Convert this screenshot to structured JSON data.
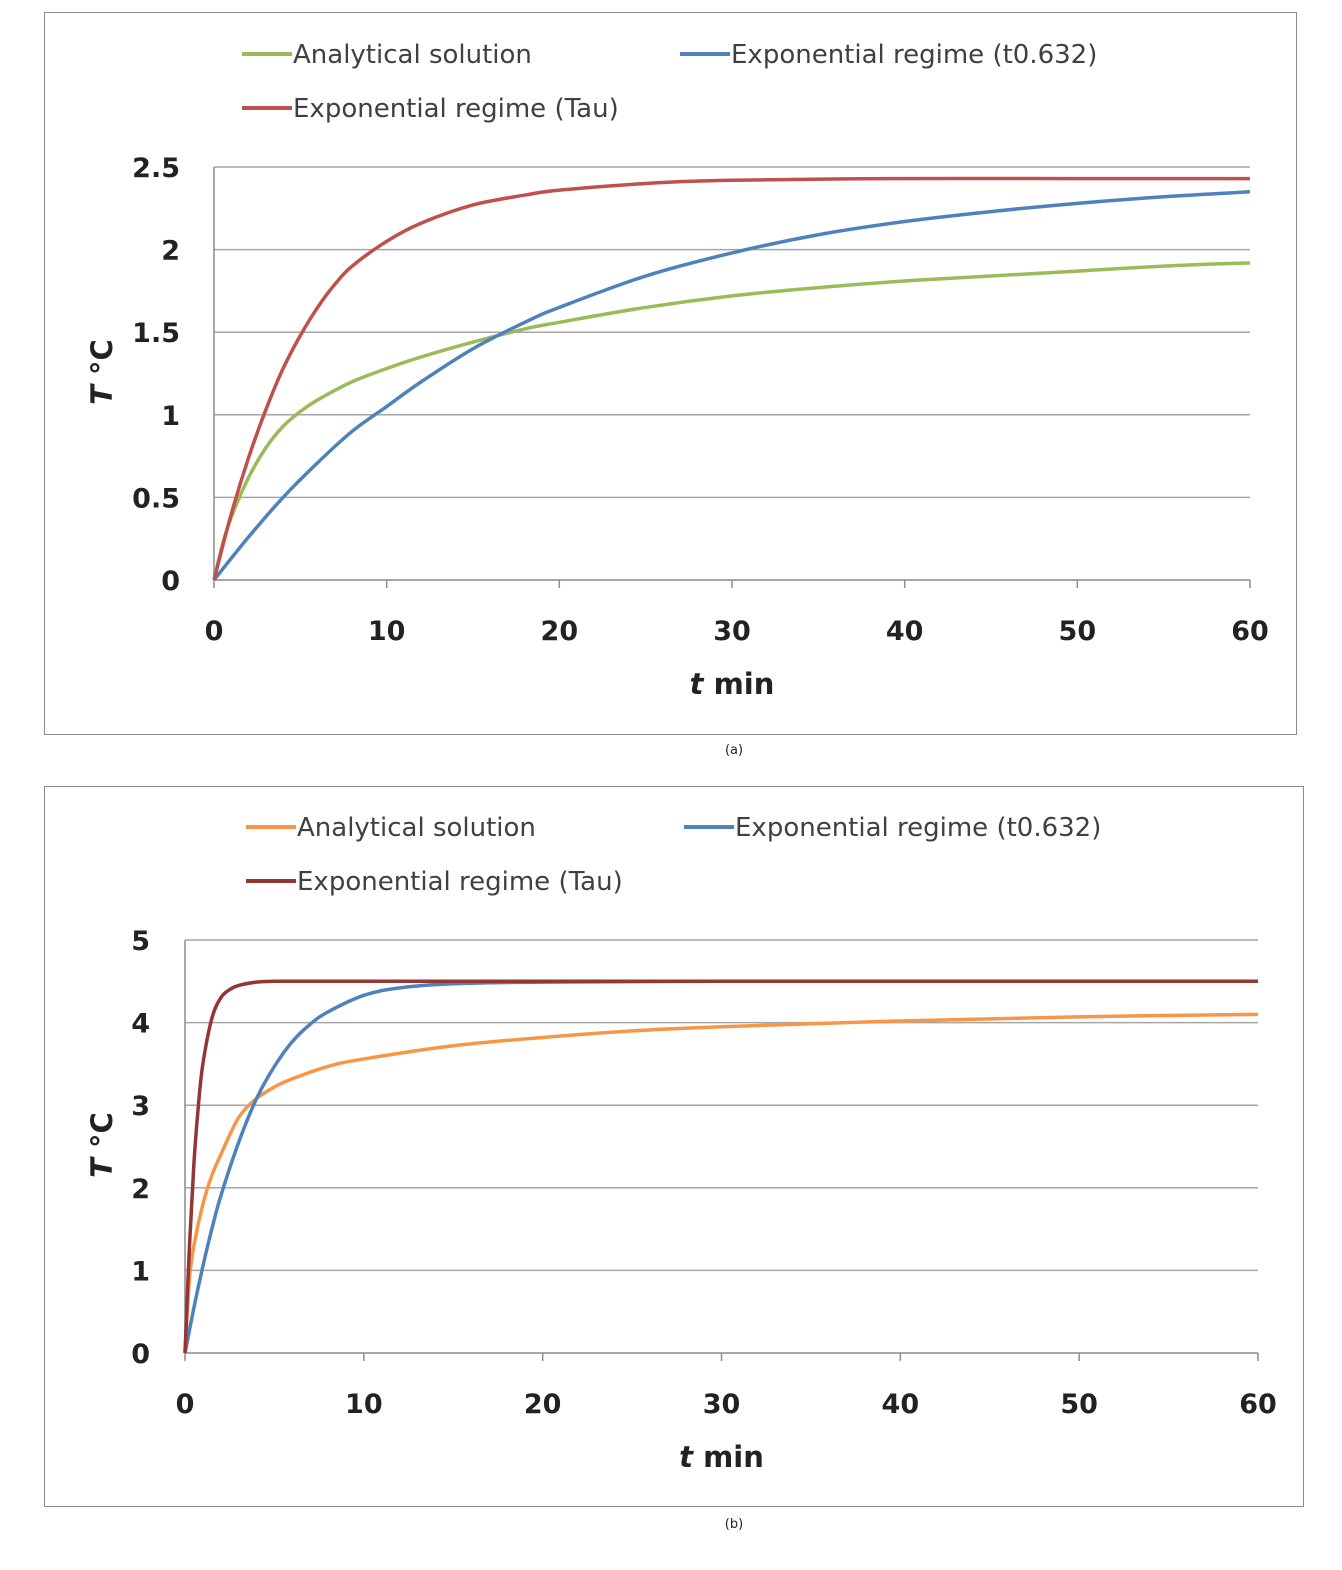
{
  "chart_data": [
    {
      "type": "line",
      "caption": "(a)",
      "xlabel": "min",
      "xlabel_italic": "t",
      "ylabel": "°C",
      "ylabel_italic": "T",
      "xlim": [
        0,
        60
      ],
      "ylim": [
        0,
        2.5
      ],
      "xticks": [
        0,
        10,
        20,
        30,
        40,
        50,
        60
      ],
      "yticks": [
        0,
        0.5,
        1,
        1.5,
        2,
        2.5
      ],
      "xtick_labels": [
        "0",
        "10",
        "20",
        "30",
        "40",
        "50",
        "60"
      ],
      "ytick_labels": [
        "0",
        "0.5",
        "1",
        "1.5",
        "2",
        "2.5"
      ],
      "grid": "horizontal",
      "legend_position": "top",
      "series": [
        {
          "name": "Analytical solution",
          "color": "#9bbb59",
          "x": [
            0,
            0.5,
            1,
            2,
            3,
            4,
            5,
            6,
            8,
            10,
            12,
            15,
            18,
            20,
            25,
            30,
            35,
            40,
            45,
            50,
            55,
            60
          ],
          "values": [
            0,
            0.22,
            0.38,
            0.62,
            0.8,
            0.93,
            1.02,
            1.09,
            1.2,
            1.28,
            1.35,
            1.44,
            1.52,
            1.56,
            1.65,
            1.72,
            1.77,
            1.81,
            1.84,
            1.87,
            1.9,
            1.92
          ]
        },
        {
          "name": "Exponential regime (t0.632)",
          "color": "#4f81bd",
          "x": [
            0,
            2,
            4,
            6,
            8,
            10,
            12,
            15,
            18,
            20,
            25,
            30,
            35,
            40,
            45,
            50,
            55,
            60
          ],
          "values": [
            0,
            0.26,
            0.5,
            0.71,
            0.9,
            1.05,
            1.2,
            1.4,
            1.56,
            1.65,
            1.84,
            1.98,
            2.09,
            2.17,
            2.23,
            2.28,
            2.32,
            2.35
          ]
        },
        {
          "name": "Exponential regime (Tau)",
          "color": "#c0504d",
          "x": [
            0,
            1,
            2,
            3,
            4,
            5,
            6,
            7,
            8,
            10,
            12,
            15,
            18,
            20,
            25,
            30,
            40,
            50,
            60
          ],
          "values": [
            0,
            0.4,
            0.74,
            1.03,
            1.28,
            1.48,
            1.65,
            1.79,
            1.9,
            2.05,
            2.16,
            2.27,
            2.33,
            2.36,
            2.4,
            2.42,
            2.43,
            2.43,
            2.43
          ]
        }
      ]
    },
    {
      "type": "line",
      "caption": "(b)",
      "xlabel": "min",
      "xlabel_italic": "t",
      "ylabel": "°C",
      "ylabel_italic": "T",
      "xlim": [
        0,
        60
      ],
      "ylim": [
        0,
        5
      ],
      "xticks": [
        0,
        10,
        20,
        30,
        40,
        50,
        60
      ],
      "yticks": [
        0,
        1,
        2,
        3,
        4,
        5
      ],
      "xtick_labels": [
        "0",
        "10",
        "20",
        "30",
        "40",
        "50",
        "60"
      ],
      "ytick_labels": [
        "0",
        "1",
        "2",
        "3",
        "4",
        "5"
      ],
      "grid": "horizontal",
      "legend_position": "top",
      "series": [
        {
          "name": "Analytical solution",
          "color": "#f79646",
          "x": [
            0,
            0.25,
            0.5,
            1,
            1.5,
            2,
            3,
            4,
            5,
            6,
            8,
            10,
            15,
            20,
            25,
            30,
            40,
            50,
            60
          ],
          "values": [
            0,
            0.9,
            1.3,
            1.8,
            2.15,
            2.4,
            2.85,
            3.08,
            3.22,
            3.32,
            3.47,
            3.56,
            3.72,
            3.82,
            3.9,
            3.95,
            4.02,
            4.07,
            4.1
          ]
        },
        {
          "name": "Exponential regime (t0.632)",
          "color": "#4f81bd",
          "x": [
            0,
            0.5,
            1,
            1.5,
            2,
            3,
            4,
            5,
            6,
            7,
            8,
            10,
            12,
            15,
            20,
            30,
            40,
            50,
            60
          ],
          "values": [
            0,
            0.55,
            1.05,
            1.5,
            1.9,
            2.55,
            3.08,
            3.47,
            3.77,
            3.98,
            4.13,
            4.33,
            4.42,
            4.47,
            4.49,
            4.5,
            4.5,
            4.5,
            4.5
          ]
        },
        {
          "name": "Exponential regime (Tau)",
          "color": "#943634",
          "x": [
            0,
            0.25,
            0.5,
            0.75,
            1,
            1.5,
            2,
            2.5,
            3,
            4,
            5,
            6,
            8,
            10,
            20,
            30,
            40,
            50,
            60
          ],
          "values": [
            0,
            1.3,
            2.3,
            3.0,
            3.5,
            4.05,
            4.3,
            4.4,
            4.45,
            4.49,
            4.5,
            4.5,
            4.5,
            4.5,
            4.5,
            4.5,
            4.5,
            4.5,
            4.5
          ]
        }
      ]
    }
  ]
}
